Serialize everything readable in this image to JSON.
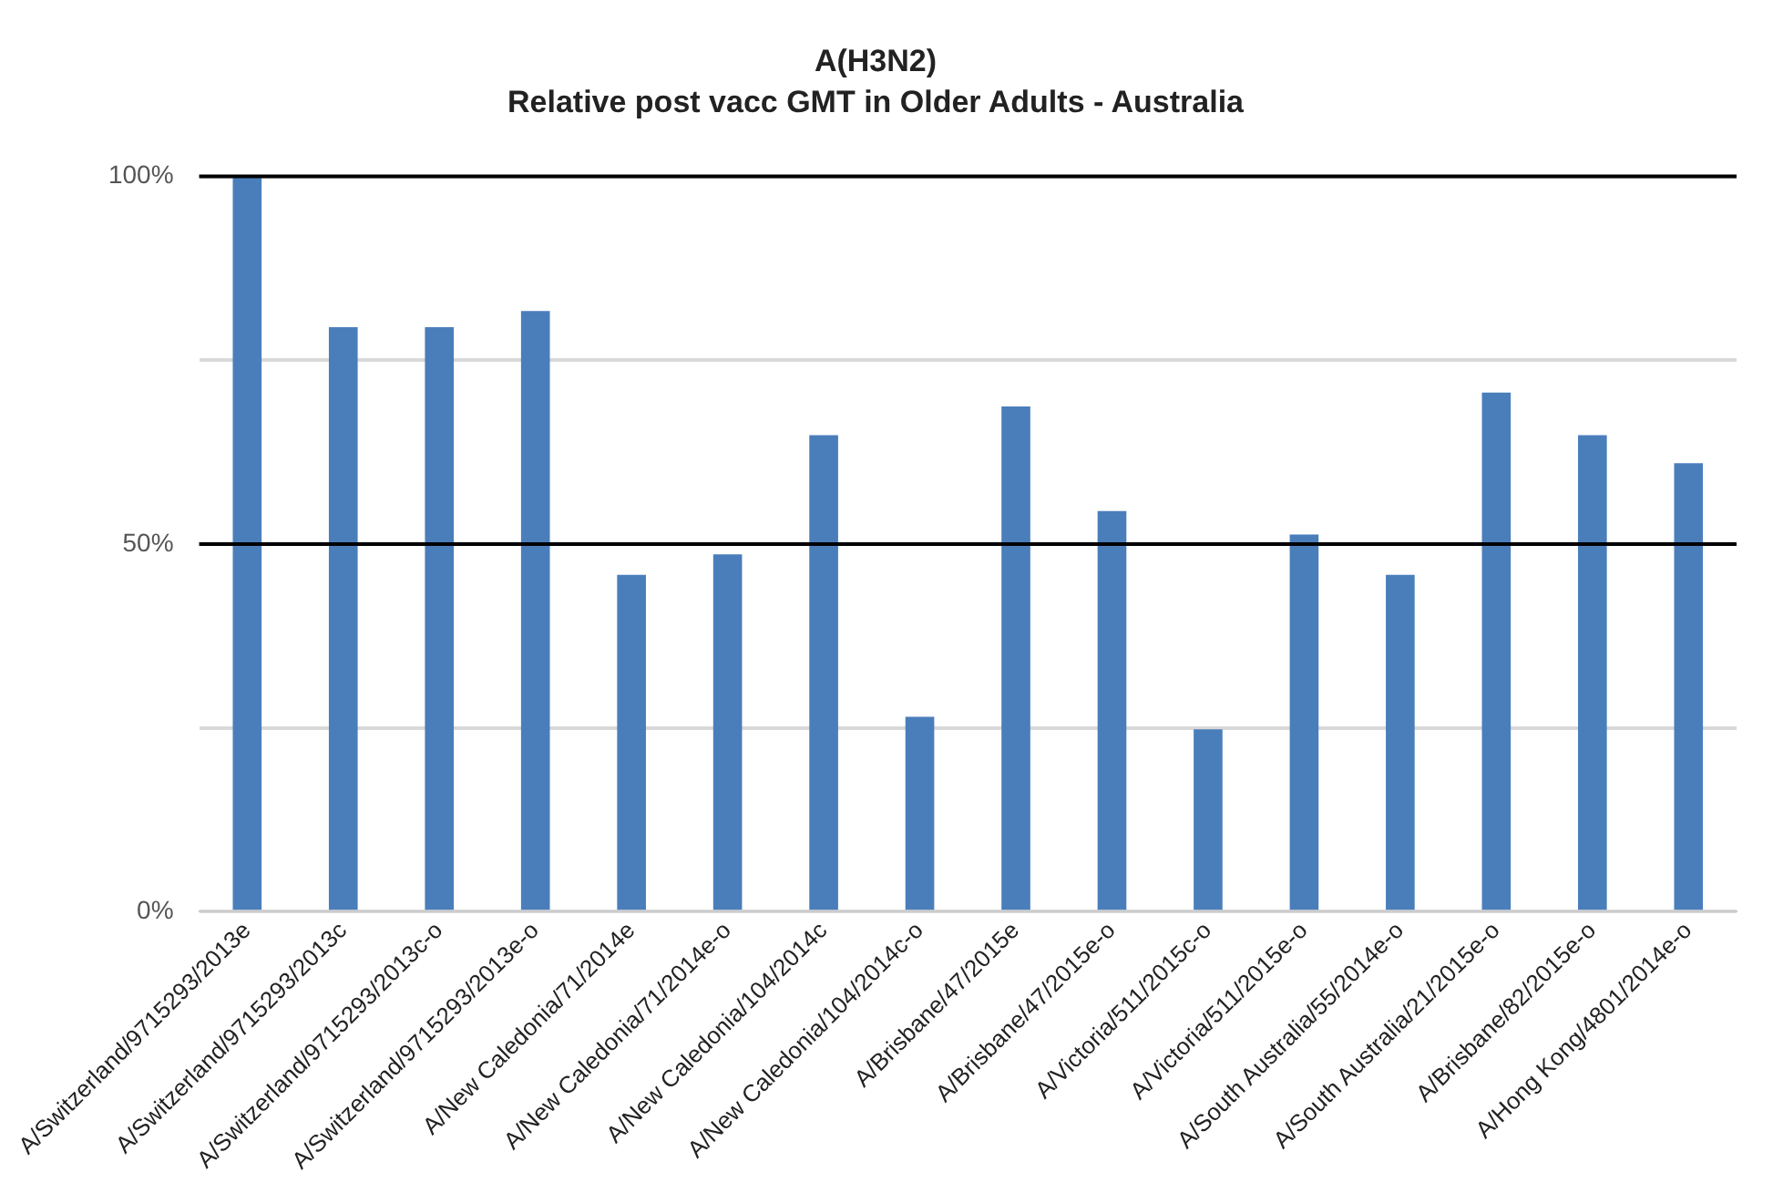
{
  "chart_data": {
    "type": "bar",
    "title": "A(H3N2)",
    "subtitle": "Relative post vacc GMT in Older Adults - Australia",
    "categories": [
      "A/Switzerland/9715293/2013e",
      "A/Switzerland/9715293/2013c",
      "A/Switzerland/9715293/2013c-o",
      "A/Switzerland/9715293/2013e-o",
      "A/New Caledonia/71/2014e",
      "A/New Caledonia/71/2014e-o",
      "A/New Caledonia/104/2014c",
      "A/New Caledonia/104/2014c-o",
      "A/Brisbane/47/2015e",
      "A/Brisbane/47/2015e-o",
      "A/Victoria/511/2015c-o",
      "A/Victoria/511/2015e-o",
      "A/South Australia/55/2014e-o",
      "A/South Australia/21/2015e-o",
      "A/Brisbane/82/2015e-o",
      "A/Hong Kong/4801/2014e-o"
    ],
    "values": [
      100,
      79.5,
      79.5,
      81.7,
      45.8,
      48.6,
      64.8,
      26.5,
      68.7,
      54.5,
      24.8,
      51.3,
      45.8,
      70.6,
      64.8,
      61
    ],
    "color": "#4a7ebb",
    "ylim": [
      0,
      100
    ],
    "yticks": [
      {
        "value": 0,
        "label": "0%"
      },
      {
        "value": 25,
        "label": null
      },
      {
        "value": 50,
        "label": "50%"
      },
      {
        "value": 75,
        "label": null
      },
      {
        "value": 100,
        "label": "100%"
      }
    ],
    "grid": "y",
    "legend": false,
    "ref_lines": [
      {
        "axis": "y",
        "value": 50,
        "color": "#000000"
      },
      {
        "axis": "y",
        "value": 100,
        "color": "#000000"
      }
    ]
  }
}
